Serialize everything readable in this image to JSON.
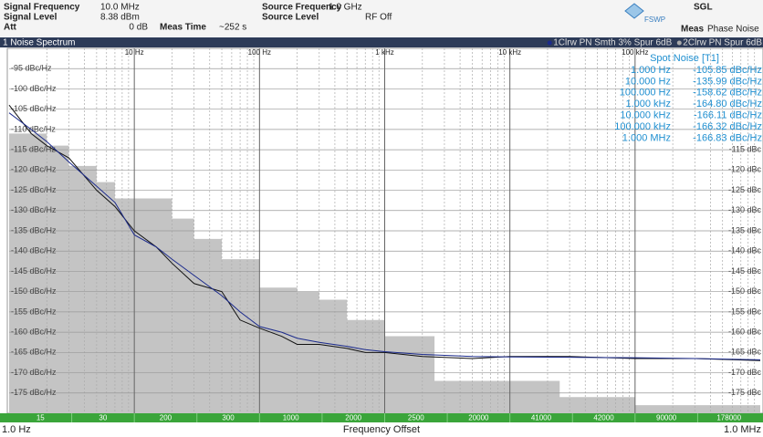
{
  "header": {
    "signal_frequency": {
      "label": "Signal Frequency",
      "value": "10.0 MHz"
    },
    "signal_level": {
      "label": "Signal Level",
      "value": "8.38 dBm"
    },
    "att": {
      "label": "Att",
      "value": "0 dB"
    },
    "meas_time": {
      "label": "Meas Time",
      "value": "~252 s"
    },
    "source_frequency": {
      "label": "Source Frequency",
      "value": "1.0 GHz"
    },
    "source_level": {
      "label": "Source Level",
      "value": "RF Off"
    },
    "logo": "FSWP",
    "mode": "SGL",
    "meas": {
      "label": "Meas",
      "value": "Phase Noise"
    }
  },
  "window": {
    "title": "1 Noise Spectrum"
  },
  "spot_noise": {
    "title": "Spot Noise [T1]",
    "rows": [
      [
        "1.000 Hz",
        "-105.85 dBc/Hz"
      ],
      [
        "10.000 Hz",
        "-135.99 dBc/Hz"
      ],
      [
        "100.000 Hz",
        "-158.62 dBc/Hz"
      ],
      [
        "1.000 kHz",
        "-164.80 dBc/Hz"
      ],
      [
        "10.000 kHz",
        "-166.11 dBc/Hz"
      ],
      [
        "100.000 kHz",
        "-166.32 dBc/Hz"
      ],
      [
        "1.000 MHz",
        "-166.83 dBc/Hz"
      ]
    ]
  },
  "segments": [
    "15",
    "30",
    "200",
    "300",
    "1000",
    "2000",
    "2500",
    "20000",
    "41000",
    "42000",
    "90000",
    "178000"
  ],
  "chart_data": {
    "type": "line",
    "xlabel": "Frequency Offset",
    "xlog": true,
    "grid": true,
    "xlim": [
      1,
      1000000
    ],
    "ylim": [
      -180,
      -90
    ],
    "xticks": [
      {
        "value": 10,
        "label": "10 Hz"
      },
      {
        "value": 100,
        "label": "100 Hz"
      },
      {
        "value": 1000,
        "label": "1 kHz"
      },
      {
        "value": 10000,
        "label": "10 kHz"
      },
      {
        "value": 100000,
        "label": "100 kHz"
      }
    ],
    "xedge_ticks": [
      {
        "value": 1,
        "label": "1.0 Hz"
      },
      {
        "value": 1000000,
        "label": "1.0 MHz"
      }
    ],
    "xminorticks": [
      2,
      3,
      4,
      5,
      6,
      7,
      8,
      9,
      20,
      30,
      40,
      50,
      60,
      70,
      80,
      90,
      200,
      300,
      400,
      500,
      600,
      700,
      800,
      900,
      2000,
      3000,
      4000,
      5000,
      6000,
      7000,
      8000,
      9000,
      20000,
      30000,
      40000,
      50000,
      60000,
      70000,
      80000,
      90000,
      200000,
      300000,
      400000,
      500000,
      600000,
      700000,
      800000,
      900000
    ],
    "yticks": [
      {
        "value": -95,
        "label": "-95 dBc/Hz"
      },
      {
        "value": -100,
        "label": "-100 dBc/Hz"
      },
      {
        "value": -105,
        "label": "-105 dBc/Hz"
      },
      {
        "value": -110,
        "label": "-110 dBc/Hz"
      },
      {
        "value": -115,
        "label": "-115 dBc/Hz"
      },
      {
        "value": -120,
        "label": "-120 dBc/Hz"
      },
      {
        "value": -125,
        "label": "-125 dBc/Hz"
      },
      {
        "value": -130,
        "label": "-130 dBc/Hz"
      },
      {
        "value": -135,
        "label": "-135 dBc/Hz"
      },
      {
        "value": -140,
        "label": "-140 dBc/Hz"
      },
      {
        "value": -145,
        "label": "-145 dBc/Hz"
      },
      {
        "value": -150,
        "label": "-150 dBc/Hz"
      },
      {
        "value": -155,
        "label": "-155 dBc/Hz"
      },
      {
        "value": -160,
        "label": "-160 dBc/Hz"
      },
      {
        "value": -165,
        "label": "-165 dBc/Hz"
      },
      {
        "value": -170,
        "label": "-170 dBc/Hz"
      },
      {
        "value": -175,
        "label": "-175 dBc/Hz"
      }
    ],
    "y2lim": [
      -180,
      -90
    ],
    "y2ticks": [
      {
        "value": -115,
        "label": "-115 dBc"
      },
      {
        "value": -120,
        "label": "-120 dBc"
      },
      {
        "value": -125,
        "label": "-125 dBc"
      },
      {
        "value": -130,
        "label": "-130 dBc"
      },
      {
        "value": -135,
        "label": "-135 dBc"
      },
      {
        "value": -140,
        "label": "-140 dBc"
      },
      {
        "value": -145,
        "label": "-145 dBc"
      },
      {
        "value": -150,
        "label": "-150 dBc"
      },
      {
        "value": -155,
        "label": "-155 dBc"
      },
      {
        "value": -160,
        "label": "-160 dBc"
      },
      {
        "value": -165,
        "label": "-165 dBc"
      },
      {
        "value": -170,
        "label": "-170 dBc"
      },
      {
        "value": -175,
        "label": "-175 dBc"
      }
    ],
    "floor": {
      "color": "#c4c4c4",
      "x": [
        1,
        2,
        3,
        5,
        7,
        10,
        20,
        30,
        50,
        100,
        200,
        300,
        500,
        1000,
        2500,
        25000,
        100000
      ],
      "values": [
        -111,
        -114,
        -119,
        -123,
        -127,
        -127,
        -132,
        -137,
        -142,
        -149,
        -150,
        -152,
        -157,
        -161,
        -172,
        -176,
        -178
      ]
    },
    "x": [
      1,
      1.5,
      2,
      3,
      5,
      7,
      10,
      15,
      20,
      30,
      50,
      70,
      100,
      150,
      200,
      300,
      500,
      700,
      1000,
      2000,
      5000,
      10000,
      30000,
      100000,
      300000,
      1000000
    ],
    "series": [
      {
        "name": "1Clrw PN Smth 3% Spur 6dB",
        "color": "#1b2a8c",
        "values": [
          -105.9,
          -110,
          -113,
          -118,
          -124,
          -128,
          -136,
          -139,
          -142,
          -146,
          -151,
          -155,
          -158.6,
          -160,
          -161.5,
          -162.5,
          -163.5,
          -164.3,
          -164.8,
          -165.5,
          -166,
          -166.1,
          -166.2,
          -166.3,
          -166.5,
          -166.8
        ]
      },
      {
        "name": "2Clrw PN Spur 6dB",
        "color": "#111111",
        "values": [
          -104,
          -111,
          -114,
          -117,
          -125,
          -129,
          -135,
          -139,
          -143,
          -148,
          -150,
          -157,
          -159,
          -161,
          -163,
          -163,
          -164,
          -165,
          -165,
          -166,
          -166.5,
          -166,
          -166,
          -166.5,
          -166.5,
          -167
        ]
      }
    ]
  }
}
